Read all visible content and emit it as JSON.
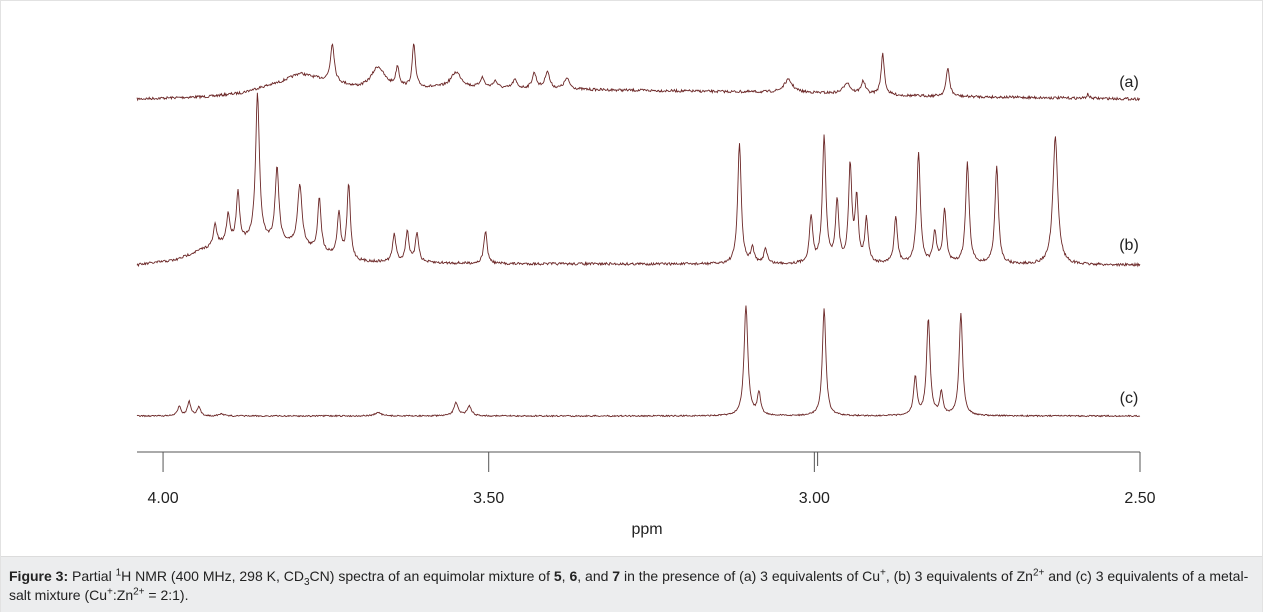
{
  "chart_data": {
    "type": "line",
    "title": "",
    "xlabel": "ppm",
    "xlim": [
      4.04,
      2.5
    ],
    "reversed_x": true,
    "xticks": [
      4.0,
      3.5,
      3.0,
      2.5
    ],
    "xtick_labels": [
      "4.00",
      "3.50",
      "3.00",
      "2.50"
    ],
    "spectrum_color": "#6b2727",
    "series": [
      {
        "name": "(a)",
        "baseline": [
          [
            4.04,
            0.0
          ],
          [
            3.93,
            0.04
          ],
          [
            3.88,
            0.1
          ],
          [
            3.82,
            0.28
          ],
          [
            3.79,
            0.42
          ],
          [
            3.75,
            0.3
          ],
          [
            3.7,
            0.18
          ],
          [
            3.55,
            0.18
          ],
          [
            3.4,
            0.16
          ],
          [
            3.2,
            0.13
          ],
          [
            3.0,
            0.1
          ],
          [
            2.85,
            0.05
          ],
          [
            2.5,
            0.0
          ]
        ],
        "peaks": [
          [
            3.74,
            0.55,
            0.0035
          ],
          [
            3.67,
            0.3,
            0.012
          ],
          [
            3.64,
            0.28,
            0.003
          ],
          [
            3.615,
            0.62,
            0.0028
          ],
          [
            3.55,
            0.22,
            0.01
          ],
          [
            3.51,
            0.14,
            0.004
          ],
          [
            3.49,
            0.1,
            0.004
          ],
          [
            3.46,
            0.12,
            0.004
          ],
          [
            3.43,
            0.22,
            0.004
          ],
          [
            3.41,
            0.25,
            0.004
          ],
          [
            3.38,
            0.15,
            0.005
          ],
          [
            3.04,
            0.18,
            0.008
          ],
          [
            2.95,
            0.16,
            0.006
          ],
          [
            2.925,
            0.18,
            0.004
          ],
          [
            2.895,
            0.58,
            0.003
          ],
          [
            2.795,
            0.4,
            0.0032
          ],
          [
            2.58,
            0.06,
            0.002
          ]
        ]
      },
      {
        "name": "(b)",
        "baseline": [
          [
            4.04,
            0.0
          ],
          [
            3.98,
            0.08
          ],
          [
            3.94,
            0.25
          ],
          [
            3.9,
            0.36
          ],
          [
            3.85,
            0.38
          ],
          [
            3.8,
            0.32
          ],
          [
            3.75,
            0.18
          ],
          [
            3.7,
            0.05
          ],
          [
            3.5,
            0.02
          ],
          [
            2.5,
            0.0
          ]
        ],
        "peaks": [
          [
            3.92,
            0.14,
            0.003
          ],
          [
            3.9,
            0.18,
            0.003
          ],
          [
            3.885,
            0.32,
            0.003
          ],
          [
            3.855,
            0.95,
            0.0035
          ],
          [
            3.825,
            0.48,
            0.0035
          ],
          [
            3.79,
            0.4,
            0.004
          ],
          [
            3.76,
            0.35,
            0.003
          ],
          [
            3.73,
            0.28,
            0.003
          ],
          [
            3.715,
            0.48,
            0.003
          ],
          [
            3.645,
            0.18,
            0.003
          ],
          [
            3.625,
            0.2,
            0.003
          ],
          [
            3.61,
            0.19,
            0.003
          ],
          [
            3.505,
            0.21,
            0.003
          ],
          [
            3.115,
            0.78,
            0.0032
          ],
          [
            3.095,
            0.1,
            0.003
          ],
          [
            3.075,
            0.1,
            0.003
          ],
          [
            3.005,
            0.3,
            0.003
          ],
          [
            2.985,
            0.82,
            0.0032
          ],
          [
            2.965,
            0.4,
            0.003
          ],
          [
            2.945,
            0.62,
            0.003
          ],
          [
            2.935,
            0.4,
            0.003
          ],
          [
            2.92,
            0.28,
            0.003
          ],
          [
            2.875,
            0.3,
            0.003
          ],
          [
            2.84,
            0.72,
            0.0032
          ],
          [
            2.815,
            0.2,
            0.003
          ],
          [
            2.8,
            0.35,
            0.003
          ],
          [
            2.765,
            0.65,
            0.0032
          ],
          [
            2.72,
            0.63,
            0.0032
          ],
          [
            2.63,
            0.82,
            0.0045
          ]
        ]
      },
      {
        "name": "(c)",
        "baseline": [
          [
            4.04,
            0.0
          ],
          [
            2.5,
            0.0
          ]
        ],
        "peaks": [
          [
            3.975,
            0.09,
            0.003
          ],
          [
            3.96,
            0.13,
            0.003
          ],
          [
            3.945,
            0.08,
            0.003
          ],
          [
            3.91,
            0.02,
            0.004
          ],
          [
            3.67,
            0.03,
            0.006
          ],
          [
            3.55,
            0.12,
            0.004
          ],
          [
            3.53,
            0.09,
            0.004
          ],
          [
            3.105,
            1.0,
            0.0035
          ],
          [
            3.085,
            0.2,
            0.003
          ],
          [
            2.985,
            0.98,
            0.0032
          ],
          [
            2.845,
            0.35,
            0.003
          ],
          [
            2.825,
            0.88,
            0.0032
          ],
          [
            2.805,
            0.2,
            0.003
          ],
          [
            2.775,
            0.93,
            0.0032
          ]
        ]
      }
    ],
    "legend_position": "right"
  },
  "caption": {
    "label": "Figure 3:",
    "t1": " Partial ",
    "sup1": "1",
    "t2": "H NMR (400 MHz, 298 K, CD",
    "sub1": "3",
    "t3": "CN) spectra of an equimolar mixture of ",
    "b1": "5",
    "t4": ", ",
    "b2": "6",
    "t5": ", and ",
    "b3": "7",
    "t6": " in the presence of (a) 3 equivalents of Cu",
    "sup2": "+",
    "t7": ", (b) 3 equivalents of Zn",
    "sup3": "2+",
    "t8": " and (c) 3 equivalents of a metal-salt mixture (Cu",
    "sup4": "+",
    "t9": ":Zn",
    "sup5": "2+",
    "t10": " = 2:1)."
  }
}
